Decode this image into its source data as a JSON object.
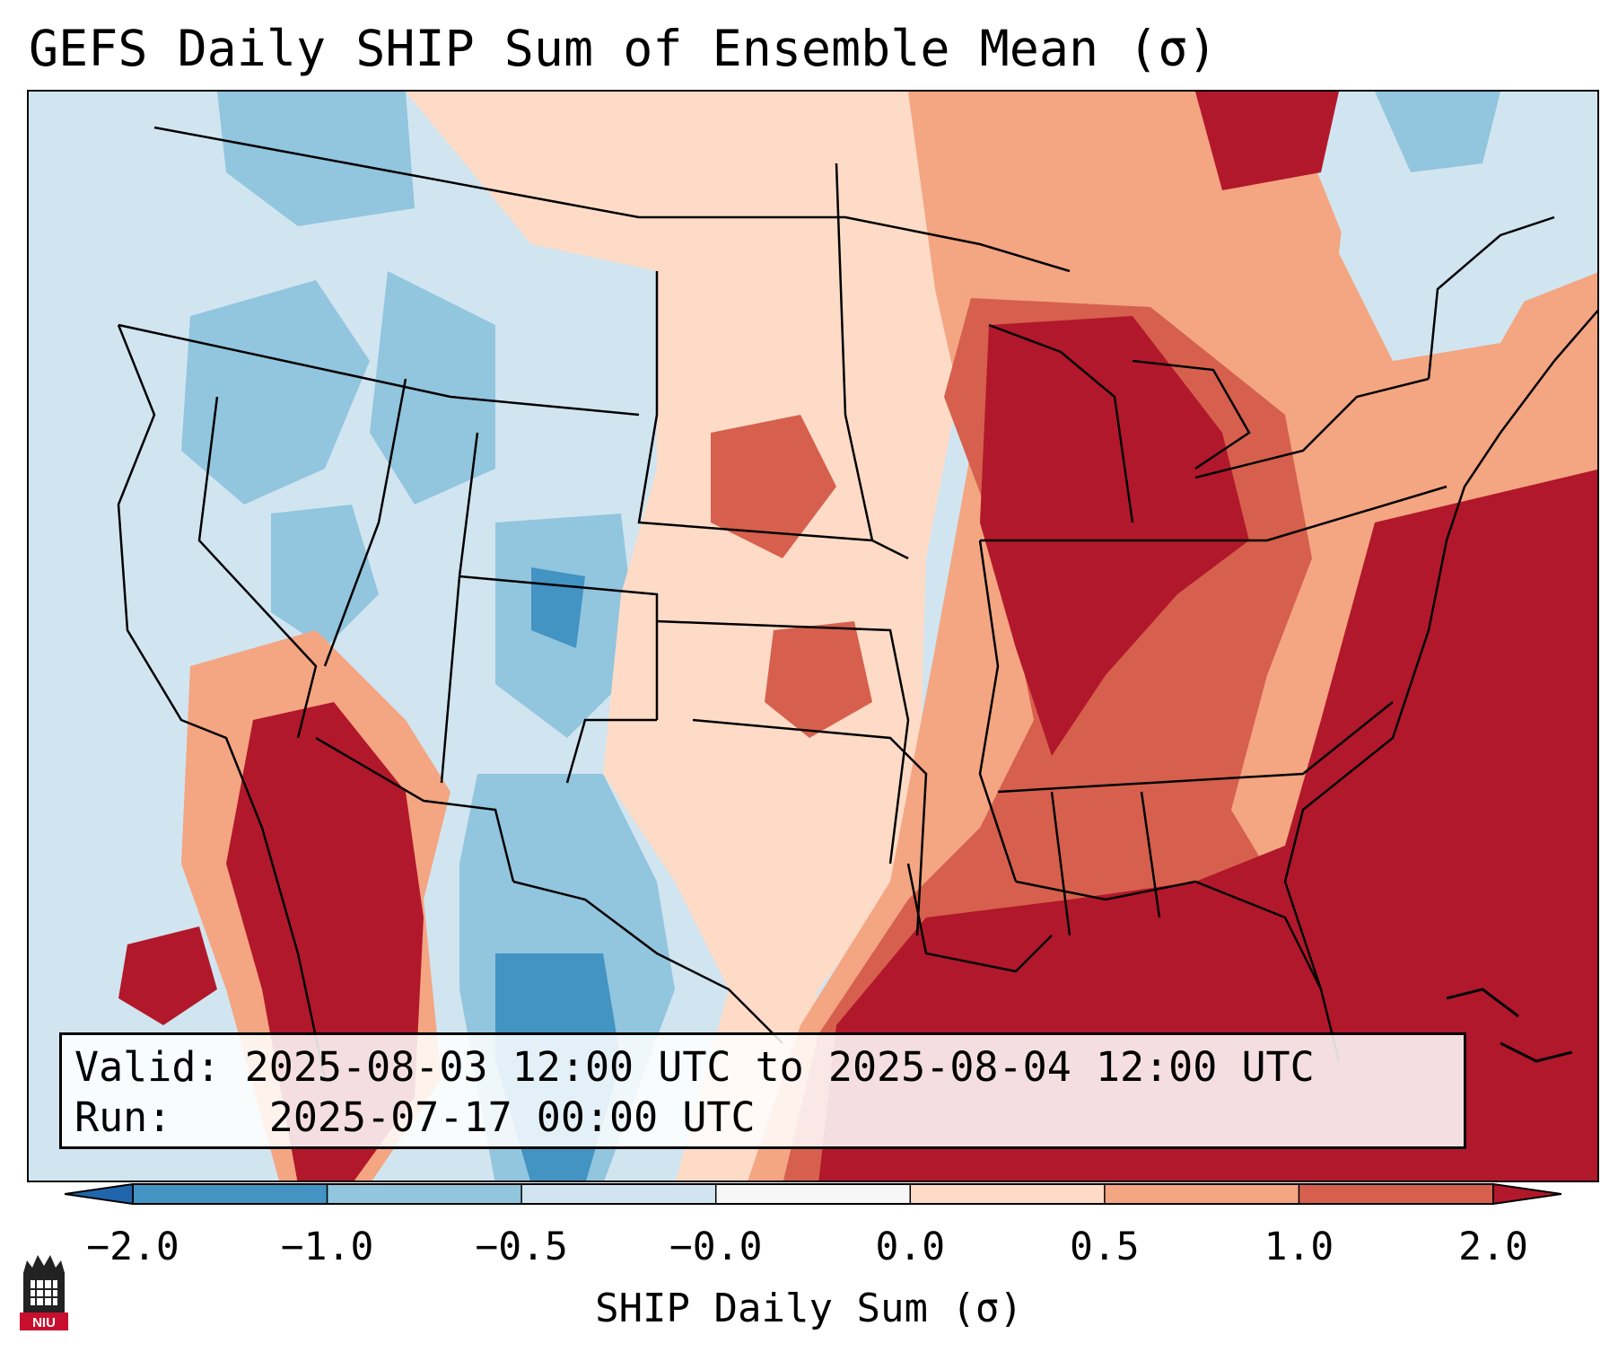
{
  "title": "GEFS Daily SHIP Sum of Ensemble Mean (σ)",
  "info": {
    "valid_label": "Valid:",
    "valid_value": "2025-08-03 12:00 UTC to 2025-08-04 12:00 UTC",
    "run_label": "Run:",
    "run_value": "2025-07-17 00:00 UTC"
  },
  "colorbar": {
    "label": "SHIP Daily Sum (σ)",
    "ticks": [
      "−2.0",
      "−1.0",
      "−0.5",
      "−0.0",
      "0.0",
      "0.5",
      "1.0",
      "2.0"
    ],
    "colors": [
      "#2166ac",
      "#4393c3",
      "#92c5de",
      "#d1e5f0",
      "#f7f7f7",
      "#fddbc7",
      "#f4a582",
      "#d6604d",
      "#b2182b"
    ],
    "extend": "both"
  },
  "map": {
    "region": "Contiguous United States",
    "colors": {
      "ocean_background": "#d1e5f0",
      "strong_positive": "#b2182b",
      "positive": "#d6604d",
      "weak_positive": "#f4a582",
      "slight_positive": "#fddbc7",
      "slight_negative": "#d1e5f0",
      "negative": "#92c5de",
      "strong_negative": "#4393c3"
    }
  },
  "logo": {
    "text": "NIU",
    "color": "#c8102e"
  }
}
